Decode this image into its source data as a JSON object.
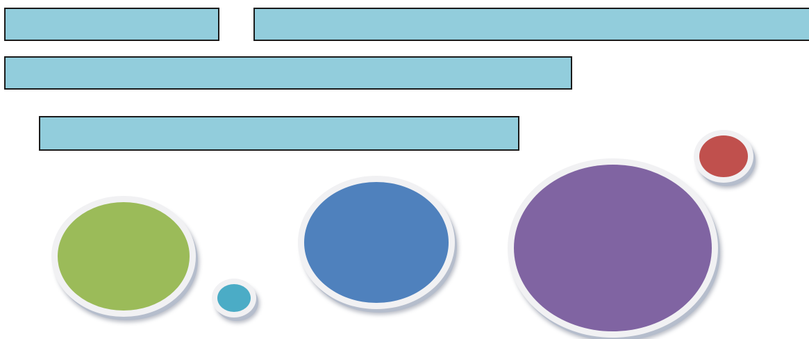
{
  "boxes": [
    {
      "id": "box-1",
      "text": ""
    },
    {
      "id": "box-2",
      "text": ""
    },
    {
      "id": "box-3",
      "text": ""
    },
    {
      "id": "box-4",
      "text": ""
    }
  ],
  "colors": {
    "box_fill": "#92cddc",
    "box_border": "#1a1a1a",
    "bubble_ring": "#f1f1f3",
    "bubble_shadow": "#b5bdcc",
    "green": "#9bbb59",
    "teal": "#4bacc6",
    "blue": "#4f81bd",
    "purple": "#8064a2",
    "red": "#c0504d"
  },
  "bubbles": [
    {
      "name": "green-circle",
      "color": "#9bbb59"
    },
    {
      "name": "teal-circle",
      "color": "#4bacc6"
    },
    {
      "name": "blue-circle",
      "color": "#4f81bd"
    },
    {
      "name": "purple-circle",
      "color": "#8064a2"
    },
    {
      "name": "red-circle",
      "color": "#c0504d"
    }
  ]
}
